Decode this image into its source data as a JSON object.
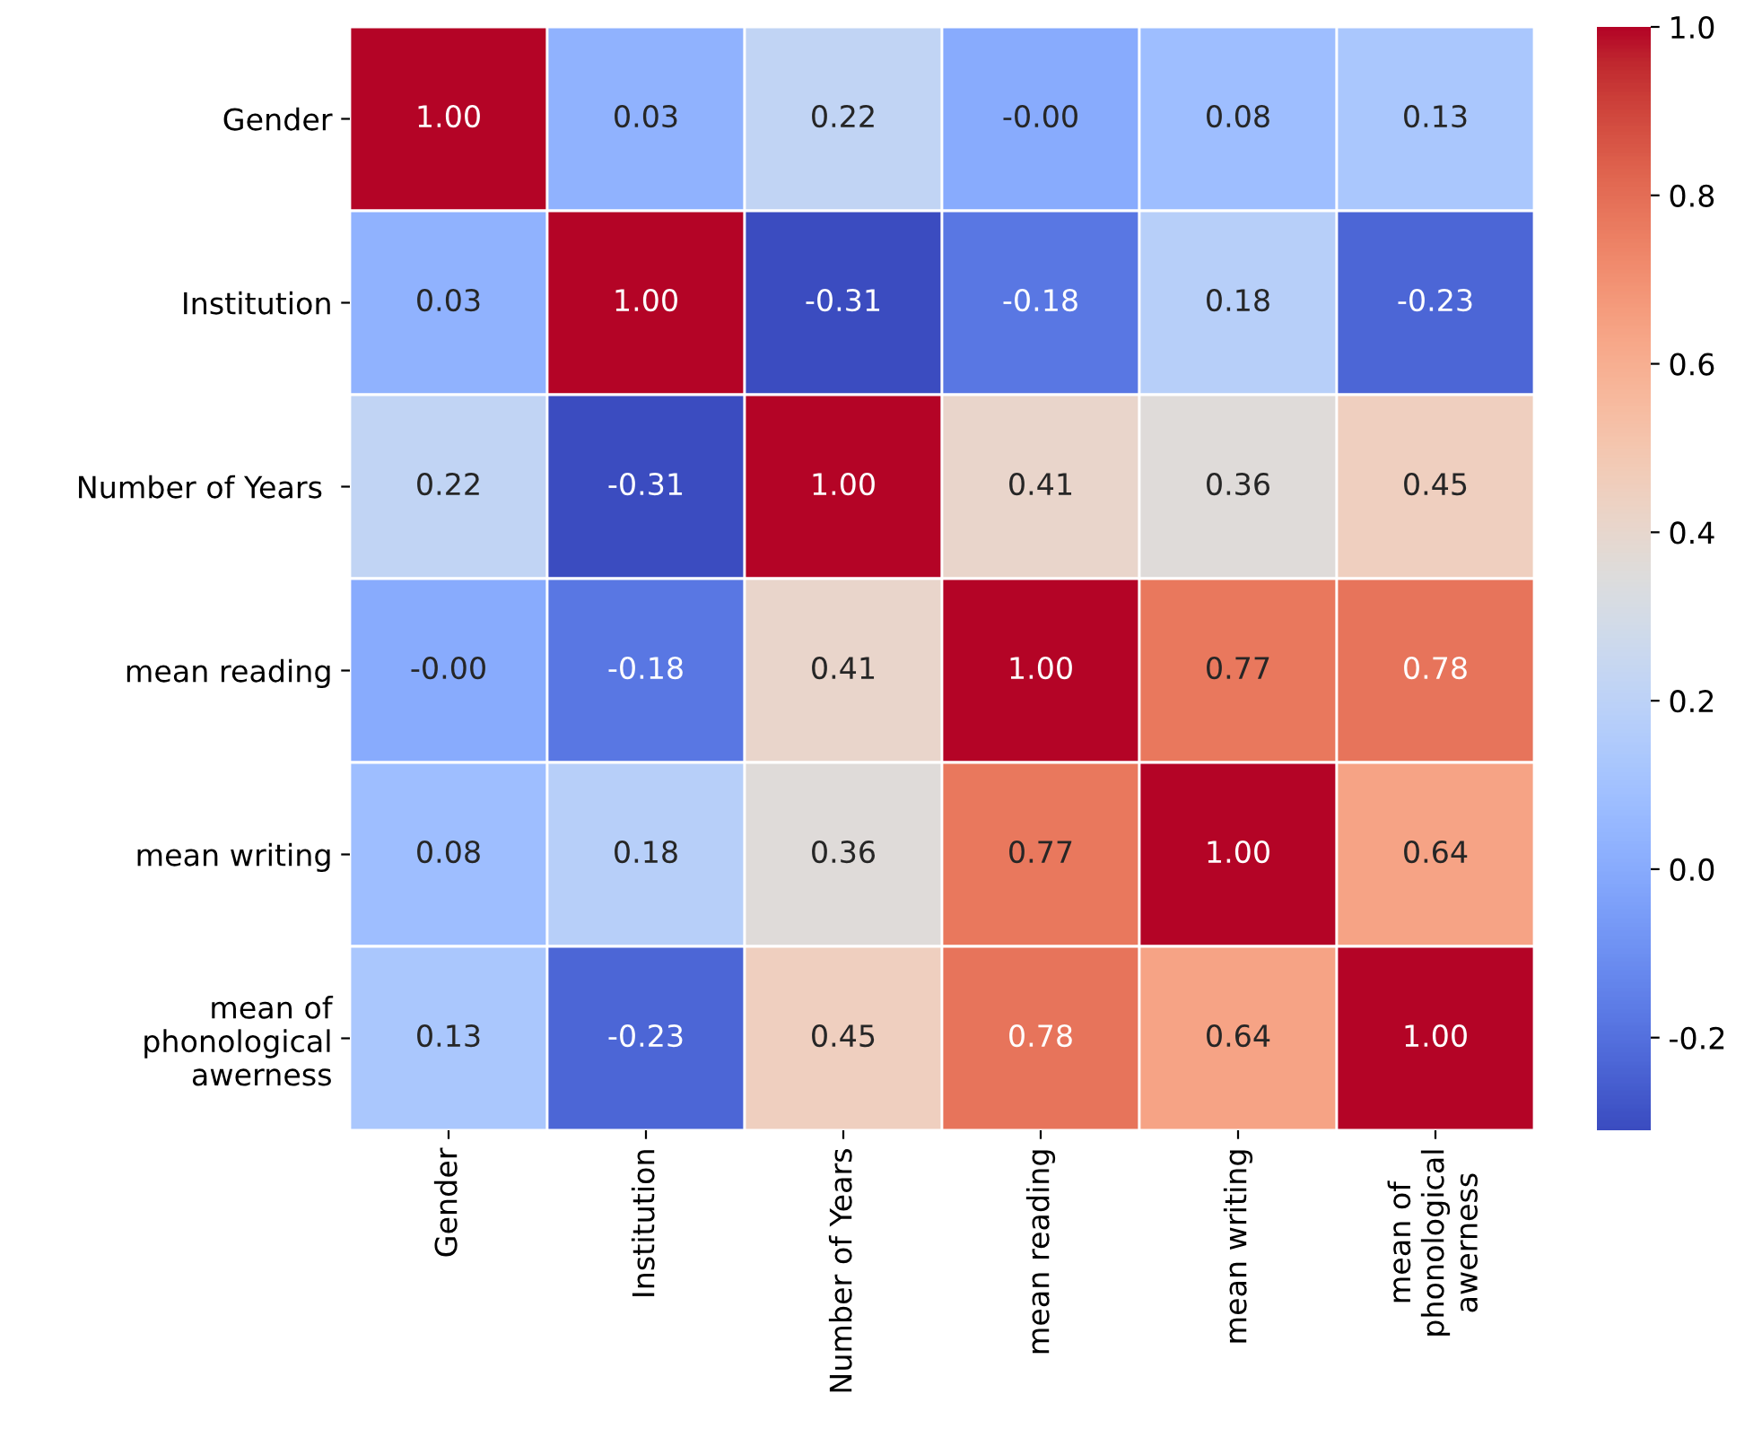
{
  "chart_data": {
    "type": "heatmap",
    "categories": [
      "Gender",
      "Institution",
      "Number of Years",
      "mean reading",
      "mean writing",
      "mean of\nphonological\nawerness"
    ],
    "y_categories": [
      "Gender",
      "Institution",
      "Number of Years ",
      "mean reading",
      "mean writing",
      "mean of\nphonological\nawerness"
    ],
    "cells": [
      [
        1.0,
        0.03,
        0.22,
        -0.0,
        0.08,
        0.13
      ],
      [
        0.03,
        1.0,
        -0.31,
        -0.18,
        0.18,
        -0.23
      ],
      [
        0.22,
        -0.31,
        1.0,
        0.41,
        0.36,
        0.45
      ],
      [
        -0.0,
        -0.18,
        0.41,
        1.0,
        0.77,
        0.78
      ],
      [
        0.08,
        0.18,
        0.36,
        0.77,
        1.0,
        0.64
      ],
      [
        0.13,
        -0.23,
        0.45,
        0.78,
        0.64,
        1.0
      ]
    ],
    "cell_labels": [
      [
        "1.00",
        "0.03",
        "0.22",
        "-0.00",
        "0.08",
        "0.13"
      ],
      [
        "0.03",
        "1.00",
        "-0.31",
        "-0.18",
        "0.18",
        "-0.23"
      ],
      [
        "0.22",
        "-0.31",
        "1.00",
        "0.41",
        "0.36",
        "0.45"
      ],
      [
        "-0.00",
        "-0.18",
        "0.41",
        "1.00",
        "0.77",
        "0.78"
      ],
      [
        "0.08",
        "0.18",
        "0.36",
        "0.77",
        "1.00",
        "0.64"
      ],
      [
        "0.13",
        "-0.23",
        "0.45",
        "0.78",
        "0.64",
        "1.00"
      ]
    ],
    "clim": [
      -0.31,
      1.0
    ],
    "cticks": [
      -0.2,
      {
        "value": 0,
        "label": "0.0"
      },
      0.2,
      0.4,
      0.6,
      0.8,
      {
        "value": 1,
        "label": "1.0"
      }
    ]
  }
}
